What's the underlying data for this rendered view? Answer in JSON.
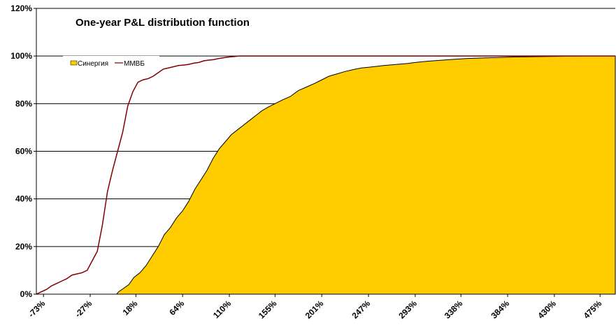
{
  "chart_data": {
    "type": "area",
    "title": "One-year P&L distribution function",
    "xlabel": "",
    "ylabel": "",
    "ylim": [
      0,
      120
    ],
    "y_ticks": [
      "0%",
      "20%",
      "40%",
      "60%",
      "80%",
      "100%",
      "120%"
    ],
    "y_tick_values": [
      0,
      20,
      40,
      60,
      80,
      100,
      120
    ],
    "x_ticks": [
      "-73%",
      "-27%",
      "18%",
      "64%",
      "110%",
      "155%",
      "201%",
      "247%",
      "293%",
      "338%",
      "384%",
      "430%",
      "475%"
    ],
    "x_tick_values": [
      -73,
      -27,
      18,
      64,
      110,
      155,
      201,
      247,
      293,
      338,
      384,
      430,
      475
    ],
    "xlim": [
      -80,
      490
    ],
    "grid": "horizontal",
    "legend_position": "top-left",
    "series": [
      {
        "name": "Синергия",
        "kind": "area",
        "color": "#FFCC00",
        "x": [
          -80,
          -1,
          1,
          6,
          11,
          16,
          22,
          28,
          34,
          40,
          46,
          52,
          58,
          64,
          70,
          76,
          82,
          88,
          94,
          100,
          106,
          112,
          118,
          124,
          130,
          136,
          142,
          148,
          155,
          162,
          170,
          178,
          186,
          194,
          201,
          208,
          216,
          224,
          232,
          240,
          247,
          254,
          262,
          270,
          278,
          286,
          293,
          305,
          318,
          330,
          345,
          360,
          375,
          390,
          405,
          420,
          440,
          460,
          475,
          490
        ],
        "y": [
          0,
          0,
          1,
          2.5,
          4,
          7,
          9,
          12,
          16,
          20,
          25,
          28,
          32,
          35,
          39,
          44,
          48,
          52,
          57,
          61,
          64,
          67,
          69,
          71,
          73,
          75,
          77,
          78.5,
          80,
          81.5,
          83,
          85.5,
          87,
          88.5,
          90,
          91.5,
          92.5,
          93.5,
          94.3,
          95,
          95.3,
          95.6,
          96,
          96.3,
          96.6,
          96.9,
          97.3,
          97.8,
          98.2,
          98.6,
          99,
          99.2,
          99.4,
          99.6,
          99.7,
          99.8,
          99.9,
          100,
          100,
          100
        ]
      },
      {
        "name": "ММВБ",
        "kind": "line",
        "color": "#800000",
        "x": [
          -80,
          -75,
          -70,
          -65,
          -60,
          -55,
          -50,
          -45,
          -40,
          -35,
          -30,
          -25,
          -20,
          -15,
          -10,
          -5,
          0,
          5,
          10,
          15,
          20,
          25,
          30,
          35,
          40,
          45,
          50,
          55,
          60,
          65,
          70,
          75,
          80,
          85,
          90,
          95,
          100,
          105,
          110,
          115,
          120,
          125,
          130,
          135,
          140,
          145,
          150,
          160,
          200,
          300,
          400,
          490
        ],
        "y": [
          0,
          1,
          2,
          3.5,
          4.5,
          5.5,
          6.5,
          8,
          8.5,
          9,
          10,
          14,
          18,
          29,
          43,
          52,
          60,
          68,
          79,
          85,
          89,
          90,
          90.5,
          91.5,
          93,
          94.5,
          95,
          95.5,
          96,
          96.2,
          96.5,
          97,
          97.3,
          98,
          98.3,
          98.5,
          99,
          99.3,
          99.6,
          99.8,
          100,
          100,
          100,
          100,
          100,
          100,
          100,
          100,
          100,
          100,
          100,
          100
        ]
      }
    ]
  }
}
